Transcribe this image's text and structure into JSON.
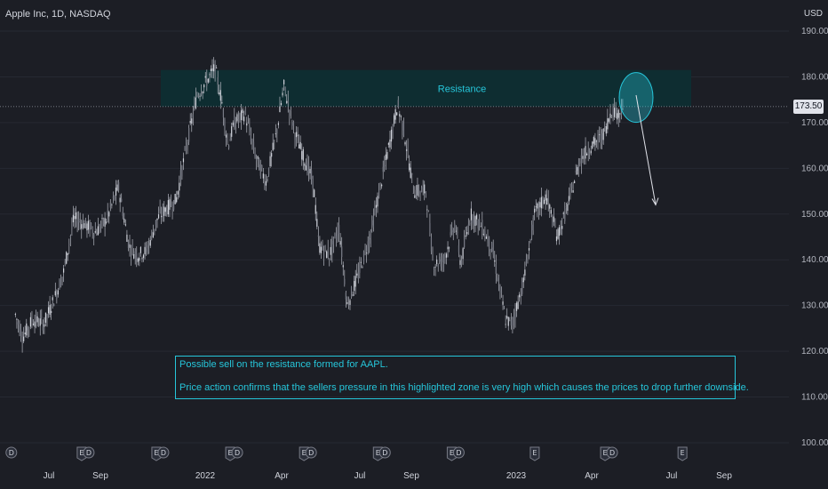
{
  "header": {
    "symbol": "Apple Inc, 1D, NASDAQ"
  },
  "currency": "USD",
  "colors": {
    "background": "#1c1e25",
    "candle": "#b2b5be",
    "zone": "#0e2d31",
    "accent": "#26c6da",
    "dashed": "#9598a1"
  },
  "annotation": {
    "zone_label": "Resistance",
    "note_line1": "Possible sell on the resistance formed for AAPL.",
    "note_line2": "Price action confirms that the sellers pressure in this highlighted zone is very high which causes the prices to drop further downside."
  },
  "price_label": "173.50",
  "event_markers": [
    {
      "label": "D",
      "x_date": "2021-04-28"
    },
    {
      "label": "E D",
      "x_date": "2021-07-28"
    },
    {
      "label": "E D",
      "x_date": "2021-10-28"
    },
    {
      "label": "E D",
      "x_date": "2022-01-27"
    },
    {
      "label": "E D",
      "x_date": "2022-04-28"
    },
    {
      "label": "E D",
      "x_date": "2022-07-28"
    },
    {
      "label": "E D",
      "x_date": "2022-10-27"
    },
    {
      "label": "E",
      "x_date": "2023-02-02"
    },
    {
      "label": "E D",
      "x_date": "2023-05-04"
    },
    {
      "label": "E",
      "x_date": "2023-08-03"
    }
  ],
  "chart_data": {
    "type": "line",
    "title": "Apple Inc, 1D, NASDAQ",
    "xlabel": "",
    "ylabel": "",
    "y_ticks": [
      "190.00",
      "180.00",
      "170.00",
      "160.00",
      "150.00",
      "140.00",
      "130.00",
      "120.00",
      "110.00",
      "100.00"
    ],
    "x_ticks": [
      "Jul",
      "Sep",
      "2022",
      "Apr",
      "Jul",
      "Sep",
      "2023",
      "Apr",
      "Jul",
      "Sep"
    ],
    "y_range": [
      98,
      192
    ],
    "resistance_zone": [
      173.5,
      181.5
    ],
    "current_price": 173.5,
    "series": [
      {
        "values": [
          {
            "x": "2021-05-03",
            "y": 128
          },
          {
            "x": "2021-05-12",
            "y": 123
          },
          {
            "x": "2021-05-24",
            "y": 127
          },
          {
            "x": "2021-06-07",
            "y": 126
          },
          {
            "x": "2021-06-21",
            "y": 132
          },
          {
            "x": "2021-07-01",
            "y": 137
          },
          {
            "x": "2021-07-14",
            "y": 149
          },
          {
            "x": "2021-07-26",
            "y": 148
          },
          {
            "x": "2021-08-10",
            "y": 146
          },
          {
            "x": "2021-08-24",
            "y": 149
          },
          {
            "x": "2021-09-07",
            "y": 156
          },
          {
            "x": "2021-09-20",
            "y": 143
          },
          {
            "x": "2021-09-30",
            "y": 141
          },
          {
            "x": "2021-10-12",
            "y": 142
          },
          {
            "x": "2021-10-25",
            "y": 149
          },
          {
            "x": "2021-11-04",
            "y": 151
          },
          {
            "x": "2021-11-17",
            "y": 153
          },
          {
            "x": "2021-11-30",
            "y": 165
          },
          {
            "x": "2021-12-13",
            "y": 176
          },
          {
            "x": "2021-12-28",
            "y": 180
          },
          {
            "x": "2022-01-04",
            "y": 182
          },
          {
            "x": "2022-01-12",
            "y": 175
          },
          {
            "x": "2022-01-20",
            "y": 165
          },
          {
            "x": "2022-01-28",
            "y": 170
          },
          {
            "x": "2022-02-10",
            "y": 172
          },
          {
            "x": "2022-02-24",
            "y": 162
          },
          {
            "x": "2022-03-08",
            "y": 157
          },
          {
            "x": "2022-03-21",
            "y": 168
          },
          {
            "x": "2022-03-30",
            "y": 178
          },
          {
            "x": "2022-04-12",
            "y": 168
          },
          {
            "x": "2022-04-22",
            "y": 163
          },
          {
            "x": "2022-05-05",
            "y": 157
          },
          {
            "x": "2022-05-12",
            "y": 143
          },
          {
            "x": "2022-05-25",
            "y": 141
          },
          {
            "x": "2022-06-06",
            "y": 147
          },
          {
            "x": "2022-06-16",
            "y": 130
          },
          {
            "x": "2022-06-30",
            "y": 137
          },
          {
            "x": "2022-07-14",
            "y": 145
          },
          {
            "x": "2022-07-28",
            "y": 157
          },
          {
            "x": "2022-08-10",
            "y": 168
          },
          {
            "x": "2022-08-17",
            "y": 174
          },
          {
            "x": "2022-08-25",
            "y": 168
          },
          {
            "x": "2022-09-06",
            "y": 155
          },
          {
            "x": "2022-09-21",
            "y": 155
          },
          {
            "x": "2022-09-30",
            "y": 139
          },
          {
            "x": "2022-10-13",
            "y": 140
          },
          {
            "x": "2022-10-27",
            "y": 148
          },
          {
            "x": "2022-11-03",
            "y": 139
          },
          {
            "x": "2022-11-15",
            "y": 150
          },
          {
            "x": "2022-11-30",
            "y": 147
          },
          {
            "x": "2022-12-12",
            "y": 142
          },
          {
            "x": "2022-12-28",
            "y": 127
          },
          {
            "x": "2023-01-05",
            "y": 126
          },
          {
            "x": "2023-01-19",
            "y": 135
          },
          {
            "x": "2023-02-02",
            "y": 150
          },
          {
            "x": "2023-02-16",
            "y": 154
          },
          {
            "x": "2023-03-02",
            "y": 145
          },
          {
            "x": "2023-03-15",
            "y": 152
          },
          {
            "x": "2023-03-30",
            "y": 162
          },
          {
            "x": "2023-04-13",
            "y": 165
          },
          {
            "x": "2023-04-27",
            "y": 167
          },
          {
            "x": "2023-05-08",
            "y": 173
          },
          {
            "x": "2023-05-17",
            "y": 172
          },
          {
            "x": "2023-05-22",
            "y": 174
          }
        ]
      }
    ],
    "projection": {
      "from": {
        "x": "2023-05-22",
        "y": 176
      },
      "to": {
        "x": "2023-06-30",
        "y": 152
      }
    }
  }
}
